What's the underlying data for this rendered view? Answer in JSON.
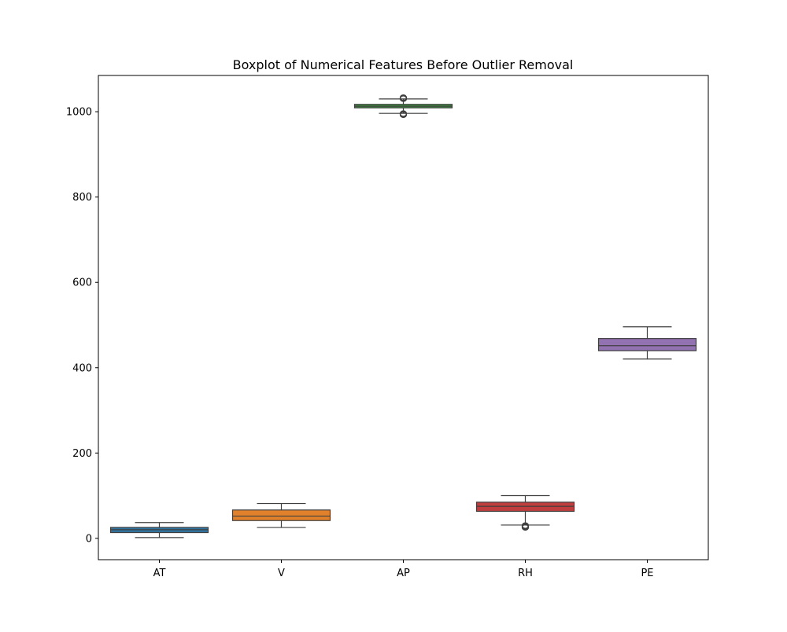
{
  "chart_data": {
    "type": "boxplot",
    "title": "Boxplot of Numerical Features Before Outlier Removal",
    "xlabel": "",
    "ylabel": "",
    "ylim": [
      -50,
      1085
    ],
    "yticks": [
      0,
      200,
      400,
      600,
      800,
      1000
    ],
    "grid": false,
    "categories": [
      "AT",
      "V",
      "AP",
      "RH",
      "PE"
    ],
    "colors": [
      "#3274a1",
      "#e1812c",
      "#3a923a",
      "#c03d3e",
      "#9372b2"
    ],
    "boxes": [
      {
        "name": "AT",
        "whisker_low": 1.8,
        "q1": 13.5,
        "median": 20.3,
        "q3": 25.7,
        "whisker_high": 37.1,
        "outliers": []
      },
      {
        "name": "V",
        "whisker_low": 25.4,
        "q1": 41.7,
        "median": 52.1,
        "q3": 66.5,
        "whisker_high": 81.6,
        "outliers": []
      },
      {
        "name": "AP",
        "whisker_low": 996.2,
        "q1": 1009.1,
        "median": 1012.9,
        "q3": 1017.3,
        "whisker_high": 1029.9,
        "outliers": [
          992.9,
          993.7,
          994.3,
          995.0,
          995.6,
          1030.5,
          1031.0,
          1031.6,
          1032.2,
          1033.0
        ]
      },
      {
        "name": "RH",
        "whisker_low": 31.2,
        "q1": 63.3,
        "median": 75.0,
        "q3": 84.8,
        "whisker_high": 100.2,
        "outliers": [
          25.6,
          26.3,
          27.0,
          27.7,
          28.4,
          29.2,
          30.0
        ]
      },
      {
        "name": "PE",
        "whisker_low": 420.3,
        "q1": 439.8,
        "median": 451.6,
        "q3": 468.4,
        "whisker_high": 495.8,
        "outliers": []
      }
    ]
  }
}
